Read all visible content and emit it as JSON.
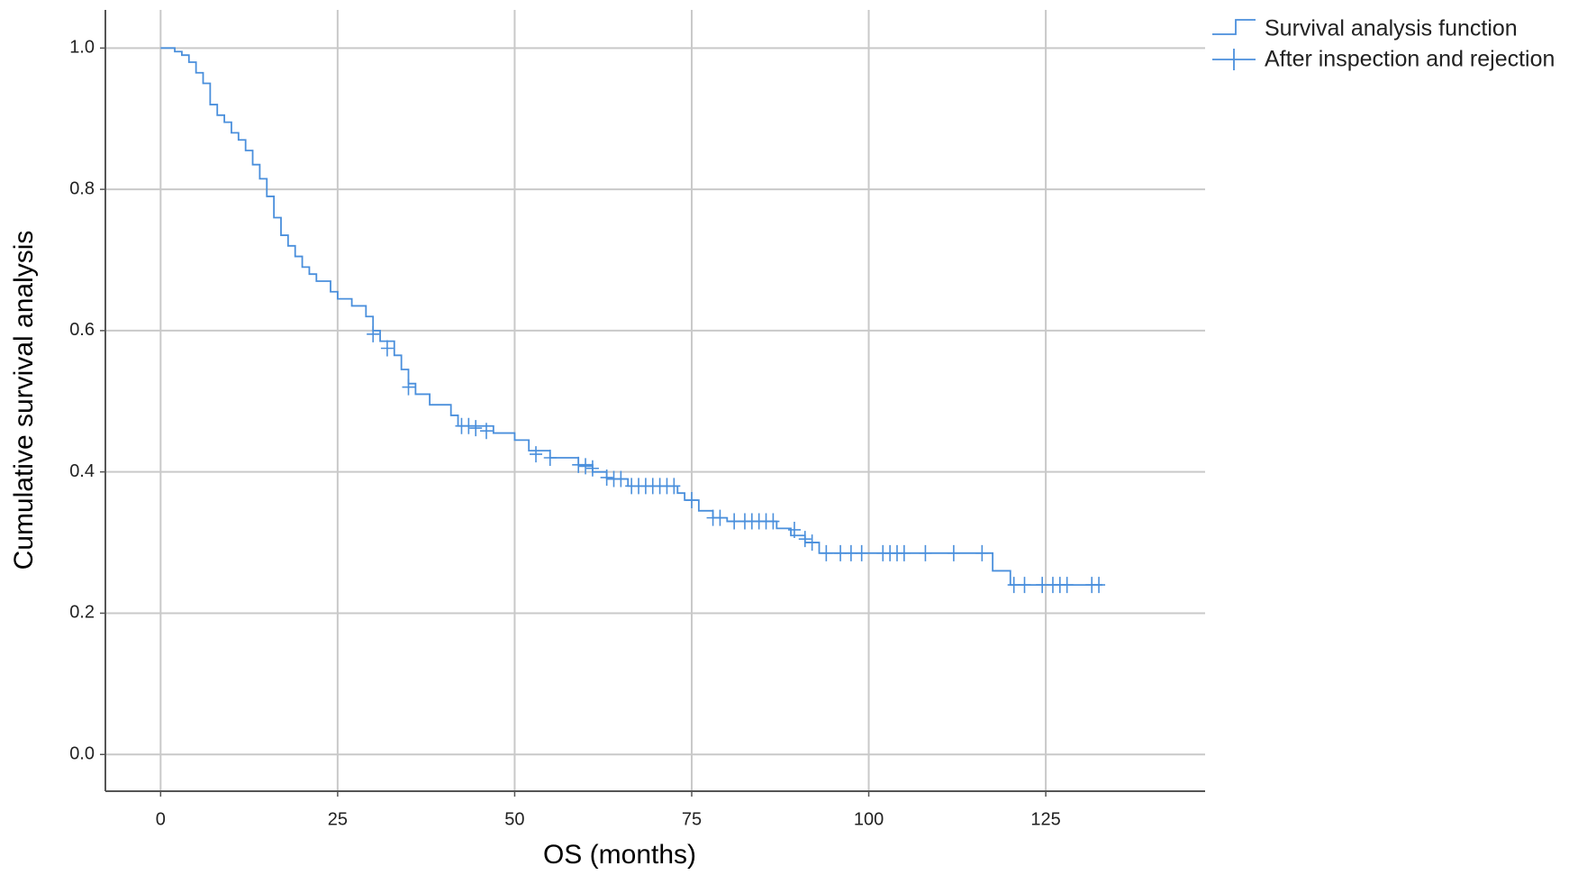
{
  "chart_data": {
    "type": "survival",
    "x_label": "OS (months)",
    "y_label": "Cumulative survival analysis",
    "xlim": [
      -7.8,
      147.5
    ],
    "xticks": [
      0,
      25,
      50,
      75,
      100,
      125
    ],
    "ylim": [
      -0.052,
      1.054
    ],
    "yticks": [
      {
        "value": 0,
        "label": "0.0"
      },
      {
        "value": 0.2,
        "label": "0.2"
      },
      {
        "value": 0.4,
        "label": "0.4"
      },
      {
        "value": 0.6,
        "label": "0.6"
      },
      {
        "value": 0.8,
        "label": "0.8"
      },
      {
        "value": 1,
        "label": "1.0"
      }
    ],
    "grid": true,
    "legend": "outside-right-top",
    "series": [
      {
        "name": "Survival analysis function",
        "color": "#4a8fdc",
        "x": [
          0,
          2,
          3,
          4,
          5,
          6,
          7,
          8,
          9,
          10,
          11,
          12,
          13,
          14,
          15,
          16,
          17,
          18,
          19,
          20,
          21,
          22,
          24,
          25,
          27,
          29,
          30,
          31,
          33,
          34,
          35,
          36,
          38,
          41,
          42,
          47,
          50,
          52,
          55,
          59,
          61,
          63,
          66,
          73,
          74,
          76,
          78,
          80,
          87,
          89,
          91,
          93,
          117.5,
          120,
          133
        ],
        "values": [
          1.0,
          0.995,
          0.99,
          0.98,
          0.965,
          0.95,
          0.92,
          0.905,
          0.895,
          0.88,
          0.87,
          0.855,
          0.835,
          0.815,
          0.79,
          0.76,
          0.735,
          0.72,
          0.705,
          0.69,
          0.68,
          0.67,
          0.655,
          0.645,
          0.635,
          0.62,
          0.6,
          0.585,
          0.565,
          0.545,
          0.525,
          0.51,
          0.495,
          0.48,
          0.465,
          0.455,
          0.445,
          0.43,
          0.42,
          0.41,
          0.4,
          0.39,
          0.38,
          0.37,
          0.36,
          0.345,
          0.335,
          0.33,
          0.32,
          0.31,
          0.3,
          0.285,
          0.26,
          0.24,
          0.24
        ]
      },
      {
        "name": "After inspection and rejection",
        "color": "#4a8fdc",
        "x": [
          30,
          32,
          35,
          42.5,
          43.5,
          44.5,
          46,
          53,
          55,
          59,
          60,
          61,
          63,
          64,
          65,
          66.5,
          67.5,
          68.5,
          69.5,
          70.5,
          71.5,
          72.5,
          75,
          78,
          79,
          81,
          82.5,
          83.5,
          84.5,
          85.5,
          86.5,
          89.5,
          91,
          92,
          94,
          96,
          97.5,
          99,
          102,
          103,
          104,
          105,
          108,
          112,
          116,
          120.5,
          122,
          124.5,
          126,
          127,
          128,
          131.5,
          132.5
        ],
        "values": [
          0.595,
          0.575,
          0.52,
          0.465,
          0.465,
          0.462,
          0.458,
          0.425,
          0.42,
          0.41,
          0.408,
          0.405,
          0.392,
          0.39,
          0.39,
          0.38,
          0.38,
          0.38,
          0.38,
          0.38,
          0.38,
          0.38,
          0.36,
          0.335,
          0.335,
          0.33,
          0.33,
          0.33,
          0.33,
          0.33,
          0.33,
          0.318,
          0.305,
          0.3,
          0.285,
          0.285,
          0.285,
          0.285,
          0.285,
          0.285,
          0.285,
          0.285,
          0.285,
          0.285,
          0.285,
          0.24,
          0.24,
          0.24,
          0.24,
          0.24,
          0.24,
          0.24,
          0.24
        ]
      }
    ]
  }
}
